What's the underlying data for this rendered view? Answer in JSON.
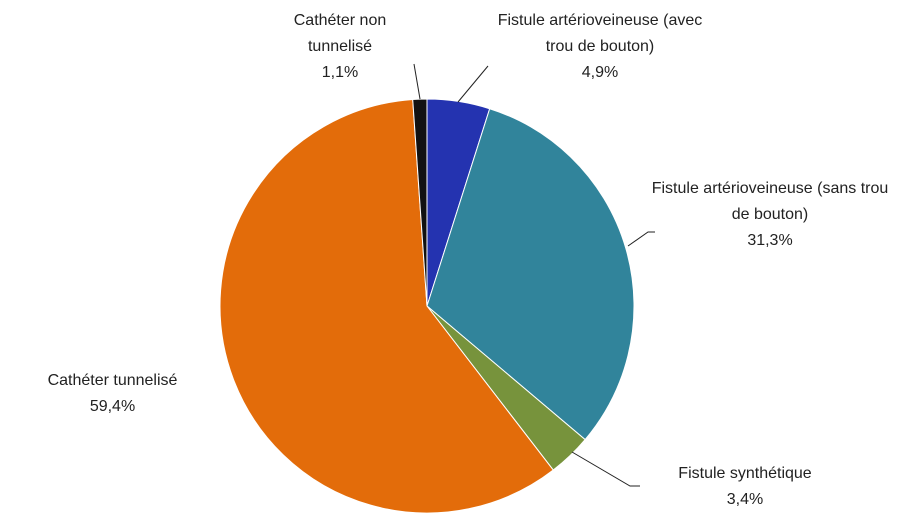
{
  "chart_data": {
    "type": "pie",
    "categories": [
      "Fistule artérioveineuse (avec trou de bouton)",
      "Fistule artérioveineuse (sans trou de bouton)",
      "Fistule synthétique",
      "Cathéter tunnelisé",
      "Cathéter non tunnelisé"
    ],
    "values": [
      4.9,
      31.3,
      3.4,
      59.4,
      1.1
    ],
    "value_labels": [
      "4,9%",
      "31,3%",
      "3,4%",
      "59,4%",
      "1,1%"
    ],
    "colors": [
      "#2433b0",
      "#31849b",
      "#77933c",
      "#e36c0a",
      "#111111"
    ]
  }
}
